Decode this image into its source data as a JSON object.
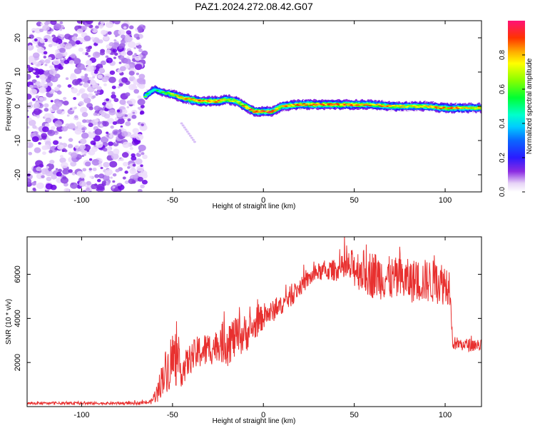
{
  "title": "PAZ1.2024.272.08.42.G07",
  "chart_data": [
    {
      "type": "heatmap",
      "xlabel": "Height of straight line (km)",
      "ylabel": "Frequency (Hz)",
      "xlim": [
        -130,
        120
      ],
      "ylim": [
        -25,
        25
      ],
      "xticks": [
        -100,
        -50,
        0,
        50,
        100
      ],
      "xtick_labels": [
        "-100",
        "-50",
        "0",
        "50",
        "100"
      ],
      "yticks": [
        -20,
        -10,
        0,
        10,
        20
      ],
      "ytick_labels": [
        "-20",
        "-10",
        "0",
        "10",
        "20"
      ],
      "colorbar": {
        "label": "Normalized spectral amplitude",
        "range": [
          0,
          1
        ],
        "ticks": [
          0,
          0.2,
          0.4,
          0.6,
          0.8
        ],
        "tick_labels": [
          "0.0",
          "0.2",
          "0.4",
          "0.6",
          "0.8"
        ],
        "colormap": "rainbow (white/violet low to red/pink high)"
      },
      "ridge": {
        "x": [
          -65,
          -60,
          -55,
          -50,
          -45,
          -40,
          -35,
          -30,
          -25,
          -20,
          -15,
          -10,
          -5,
          0,
          5,
          10,
          20,
          30,
          40,
          50,
          60,
          70,
          80,
          90,
          100,
          110,
          120
        ],
        "frequency": [
          3,
          5,
          4,
          3.5,
          2.5,
          2,
          1.5,
          1.5,
          1.5,
          2,
          1.5,
          0,
          -1.5,
          -1.5,
          -1.5,
          0,
          0.5,
          0.5,
          0.5,
          0.5,
          0.5,
          0,
          0,
          0,
          -0.5,
          -0.5,
          -0.5
        ],
        "amplitude": [
          0.6,
          0.5,
          0.6,
          0.7,
          0.8,
          0.85,
          0.9,
          0.9,
          0.85,
          0.8,
          0.75,
          0.85,
          0.95,
          0.95,
          0.9,
          0.8,
          0.85,
          0.9,
          0.9,
          0.9,
          0.8,
          0.8,
          0.75,
          0.8,
          0.85,
          0.8,
          0.75
        ]
      },
      "noise_region_x": [
        -130,
        -65
      ]
    },
    {
      "type": "line",
      "xlabel": "Height of straight line (km)",
      "ylabel": "SNR (10 * v/v)",
      "xlim": [
        -130,
        120
      ],
      "ylim": [
        0,
        7700
      ],
      "xticks": [
        -100,
        -50,
        0,
        50,
        100
      ],
      "xtick_labels": [
        "-100",
        "-50",
        "0",
        "50",
        "100"
      ],
      "yticks": [
        2000,
        4000,
        6000
      ],
      "ytick_labels": [
        "2000",
        "4000",
        "6000"
      ],
      "color": "#e8302f",
      "series": [
        {
          "x": [
            -130,
            -110,
            -90,
            -70,
            -62,
            -58,
            -55,
            -52,
            -50,
            -48,
            -45,
            -40,
            -35,
            -30,
            -25,
            -20,
            -15,
            -10,
            -5,
            0,
            5,
            10,
            15,
            20,
            25,
            30,
            40,
            50,
            60,
            70,
            80,
            90,
            100,
            103,
            104,
            110,
            120
          ],
          "y": [
            150,
            150,
            150,
            150,
            200,
            700,
            1500,
            1800,
            2200,
            2000,
            1600,
            2200,
            2500,
            2600,
            2800,
            3000,
            3100,
            3300,
            3600,
            4100,
            4300,
            4600,
            5000,
            5400,
            5800,
            6100,
            6200,
            6300,
            6000,
            5800,
            5700,
            5700,
            5600,
            5500,
            2900,
            2800,
            2800
          ],
          "noise_amplitude": [
            60,
            60,
            60,
            60,
            100,
            500,
            900,
            1100,
            1500,
            1100,
            700,
            700,
            800,
            800,
            700,
            1200,
            900,
            900,
            600,
            600,
            500,
            400,
            500,
            400,
            400,
            400,
            500,
            900,
            1100,
            1000,
            1000,
            1000,
            1000,
            900,
            300,
            300,
            300
          ]
        }
      ]
    }
  ]
}
